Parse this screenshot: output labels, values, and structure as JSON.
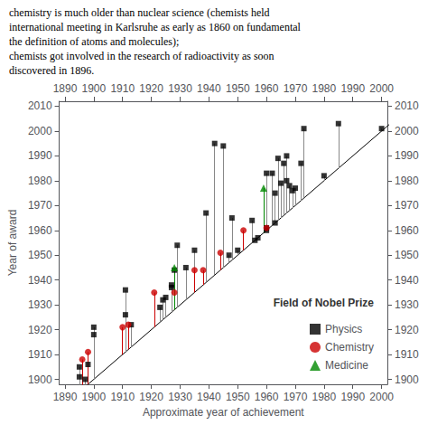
{
  "chart_data": {
    "type": "scatter",
    "annotations": [
      "chemistry is much older than nuclear science (chemists held",
      "international meeting in Karlsruhe as early as 1860 on fundamental",
      "the definition of atoms and molecules);",
      "chemists got involved in the research of radioactivity as soon",
      "discovered in 1896."
    ],
    "xlabel": "Approximate year of achievement",
    "ylabel": "Year of award",
    "legend_title": "Field of Nobel Prize",
    "legend": "lower right",
    "grid": false,
    "xlim": [
      1888,
      2002
    ],
    "ylim": [
      1898,
      2012
    ],
    "xticks": [
      1890,
      1900,
      1910,
      1920,
      1930,
      1940,
      1950,
      1960,
      1970,
      1980,
      1990,
      2000
    ],
    "yticks": [
      1900,
      1910,
      1920,
      1930,
      1940,
      1950,
      1960,
      1970,
      1980,
      1990,
      2000,
      2010
    ],
    "reference_line": {
      "x": [
        1890,
        2010
      ],
      "y": [
        1890,
        2010
      ],
      "color": "#000000"
    },
    "series": [
      {
        "name": "Physics",
        "color": "#000000",
        "marker": "square",
        "line_color": "#888888",
        "x": [
          1895,
          1895,
          1897,
          1898,
          1900,
          1900,
          1911,
          1911,
          1913,
          1923,
          1924,
          1925,
          1927,
          1927,
          1928,
          1929,
          1932,
          1935,
          1939,
          1942,
          1945,
          1947,
          1948,
          1950,
          1955,
          1956,
          1957,
          1960,
          1960,
          1960,
          1962,
          1963,
          1963,
          1964,
          1965,
          1966,
          1967,
          1967,
          1968,
          1969,
          1970,
          1972,
          1973,
          1980,
          1985,
          2000
        ],
        "y": [
          1901,
          1905,
          1900,
          1906,
          1918,
          1921,
          1926,
          1936,
          1922,
          1929,
          1932,
          1933,
          1937,
          1938,
          1944,
          1954,
          1945,
          1952,
          1967,
          1995,
          1994,
          1950,
          1965,
          1952,
          1964,
          1956,
          1957,
          1960,
          1961,
          1983,
          1983,
          1975,
          1963,
          1989,
          1979,
          1987,
          1980,
          1990,
          1978,
          1976,
          1977,
          1987,
          2001,
          1982,
          2003,
          2001
        ]
      },
      {
        "name": "Chemistry",
        "color": "#cc0000",
        "marker": "circle",
        "line_color": "#cc0000",
        "x": [
          1896,
          1898,
          1910,
          1912,
          1921,
          1928,
          1935,
          1938,
          1944,
          1952,
          1960
        ],
        "y": [
          1908,
          1911,
          1921,
          1922,
          1935,
          1935,
          1944,
          1944,
          1951,
          1960,
          1961
        ]
      },
      {
        "name": "Medicine",
        "color": "#008800",
        "marker": "triangle",
        "line_color": "#008800",
        "x": [
          1928,
          1959
        ],
        "y": [
          1945,
          1977
        ]
      }
    ]
  }
}
